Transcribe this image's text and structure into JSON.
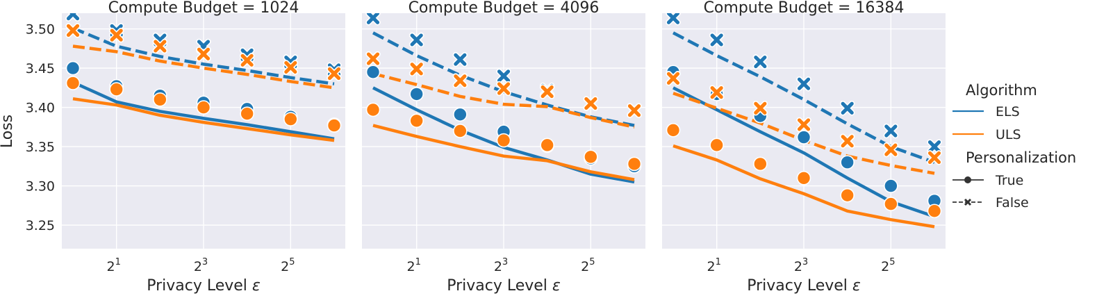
{
  "chart_data": {
    "type": "line",
    "ylabel": "Loss",
    "xlabel_text": "Privacy Level ",
    "xlabel_symbol": "ε",
    "x_scale": "log2",
    "x_values": [
      1,
      2,
      4,
      8,
      16,
      32,
      64
    ],
    "x_ticks": [
      {
        "base": "2",
        "exp": "1",
        "value": 2
      },
      {
        "base": "2",
        "exp": "3",
        "value": 8
      },
      {
        "base": "2",
        "exp": "5",
        "value": 32
      }
    ],
    "y_ticks": [
      "3.25",
      "3.30",
      "3.35",
      "3.40",
      "3.45",
      "3.50"
    ],
    "ylim": [
      3.22,
      3.52
    ],
    "colors": {
      "ELS": "#1f77b4",
      "ULS": "#ff7f0e",
      "background": "#eaeaf2",
      "grid": "#ffffff"
    },
    "legend": {
      "title_algorithm": "Algorithm",
      "algorithms": [
        "ELS",
        "ULS"
      ],
      "title_personalization": "Personalization",
      "personalization": [
        "True",
        "False"
      ]
    },
    "panels": [
      {
        "title": "Compute Budget = 1024",
        "series": [
          {
            "algorithm": "ELS",
            "personalization": "True",
            "line": [
              3.432,
              3.407,
              3.395,
              3.386,
              3.378,
              3.369,
              3.36
            ],
            "points": [
              3.45,
              3.427,
              3.415,
              3.406,
              3.398,
              3.388,
              3.378
            ]
          },
          {
            "algorithm": "ULS",
            "personalization": "True",
            "line": [
              3.411,
              3.403,
              3.39,
              3.381,
              3.373,
              3.365,
              3.358
            ],
            "points": [
              3.431,
              3.423,
              3.41,
              3.4,
              3.392,
              3.385,
              3.377
            ]
          },
          {
            "algorithm": "ELS",
            "personalization": "False",
            "line": [
              3.501,
              3.478,
              3.465,
              3.455,
              3.447,
              3.438,
              3.43
            ],
            "points": [
              3.519,
              3.498,
              3.486,
              3.478,
              3.467,
              3.458,
              3.448
            ]
          },
          {
            "algorithm": "ULS",
            "personalization": "False",
            "line": [
              3.478,
              3.471,
              3.459,
              3.45,
              3.442,
              3.433,
              3.425
            ],
            "points": [
              3.498,
              3.492,
              3.478,
              3.468,
              3.46,
              3.451,
              3.443
            ]
          }
        ]
      },
      {
        "title": "Compute Budget = 4096",
        "series": [
          {
            "algorithm": "ELS",
            "personalization": "True",
            "line": [
              3.425,
              3.397,
              3.371,
              3.349,
              3.333,
              3.315,
              3.305
            ],
            "points": [
              3.445,
              3.417,
              3.391,
              3.369,
              3.351,
              3.335,
              3.325
            ]
          },
          {
            "algorithm": "ULS",
            "personalization": "True",
            "line": [
              3.377,
              3.363,
              3.35,
              3.338,
              3.332,
              3.318,
              3.308
            ],
            "points": [
              3.397,
              3.383,
              3.37,
              3.358,
              3.352,
              3.337,
              3.328
            ]
          },
          {
            "algorithm": "ELS",
            "personalization": "False",
            "line": [
              3.495,
              3.466,
              3.441,
              3.42,
              3.403,
              3.388,
              3.377
            ],
            "points": [
              3.514,
              3.486,
              3.461,
              3.44,
              3.422,
              3.405,
              3.396
            ]
          },
          {
            "algorithm": "ULS",
            "personalization": "False",
            "line": [
              3.443,
              3.429,
              3.414,
              3.404,
              3.401,
              3.387,
              3.375
            ],
            "points": [
              3.462,
              3.449,
              3.434,
              3.424,
              3.42,
              3.405,
              3.396
            ]
          }
        ]
      },
      {
        "title": "Compute Budget = 16384",
        "series": [
          {
            "algorithm": "ELS",
            "personalization": "True",
            "line": [
              3.425,
              3.397,
              3.369,
              3.342,
              3.31,
              3.28,
              3.261
            ],
            "points": [
              3.445,
              3.417,
              3.389,
              3.362,
              3.33,
              3.3,
              3.281
            ]
          },
          {
            "algorithm": "ULS",
            "personalization": "True",
            "line": [
              3.351,
              3.333,
              3.309,
              3.29,
              3.268,
              3.257,
              3.248
            ],
            "points": [
              3.371,
              3.352,
              3.328,
              3.31,
              3.288,
              3.277,
              3.268
            ]
          },
          {
            "algorithm": "ELS",
            "personalization": "False",
            "line": [
              3.495,
              3.466,
              3.439,
              3.41,
              3.379,
              3.35,
              3.33
            ],
            "points": [
              3.514,
              3.486,
              3.458,
              3.43,
              3.399,
              3.37,
              3.35
            ]
          },
          {
            "algorithm": "ULS",
            "personalization": "False",
            "line": [
              3.418,
              3.399,
              3.38,
              3.358,
              3.338,
              3.326,
              3.316
            ],
            "points": [
              3.437,
              3.419,
              3.399,
              3.378,
              3.357,
              3.346,
              3.336
            ]
          }
        ]
      }
    ]
  }
}
